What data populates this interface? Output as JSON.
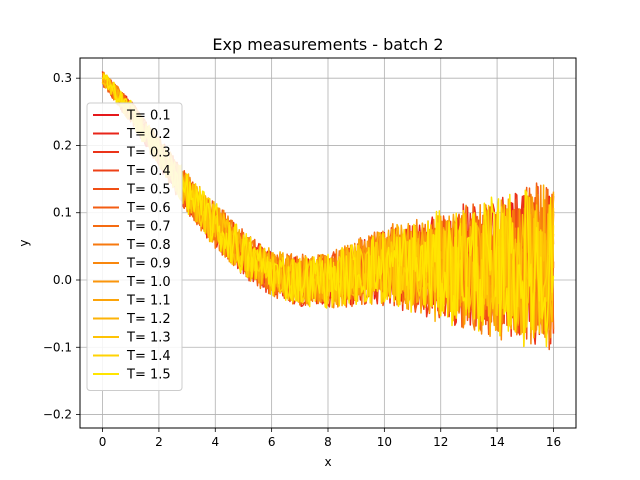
{
  "chart_data": {
    "type": "line",
    "title": "Exp measurements - batch 2",
    "xlabel": "x",
    "ylabel": "y",
    "xlim": [
      -0.8,
      16.8
    ],
    "ylim": [
      -0.22,
      0.33
    ],
    "xticks": [
      0,
      2,
      4,
      6,
      8,
      10,
      12,
      14,
      16
    ],
    "yticks": [
      -0.2,
      -0.1,
      0.0,
      0.1,
      0.2,
      0.3
    ],
    "xtick_labels": [
      "0",
      "2",
      "4",
      "6",
      "8",
      "10",
      "12",
      "14",
      "16"
    ],
    "ytick_labels": [
      "−0.2",
      "−0.1",
      "0.0",
      "0.1",
      "0.2",
      "0.3"
    ],
    "grid": true,
    "legend_position": "upper-left",
    "x_range": [
      0,
      16
    ],
    "trend": {
      "x": [
        0,
        1,
        2,
        3,
        4,
        5,
        6,
        7,
        8,
        9,
        10,
        11,
        12,
        13,
        14,
        15,
        16
      ],
      "y": [
        0.3,
        0.25,
        0.19,
        0.13,
        0.08,
        0.04,
        0.01,
        0.0,
        0.0,
        0.01,
        0.02,
        0.02,
        0.02,
        0.02,
        0.02,
        0.02,
        0.02
      ]
    },
    "noise_amplitude": {
      "x": [
        0,
        2,
        4,
        6,
        8,
        10,
        12,
        14,
        15,
        16
      ],
      "y": [
        0.01,
        0.02,
        0.03,
        0.03,
        0.035,
        0.05,
        0.07,
        0.09,
        0.1,
        0.11
      ]
    },
    "series": [
      {
        "name": "T= 0.1",
        "color": "#e5181b"
      },
      {
        "name": "T= 0.2",
        "color": "#e8251a"
      },
      {
        "name": "T= 0.3",
        "color": "#eb3319"
      },
      {
        "name": "T= 0.4",
        "color": "#ee4117"
      },
      {
        "name": "T= 0.5",
        "color": "#f04f15"
      },
      {
        "name": "T= 0.6",
        "color": "#f35d13"
      },
      {
        "name": "T= 0.7",
        "color": "#f56b11"
      },
      {
        "name": "T= 0.8",
        "color": "#f7790f"
      },
      {
        "name": "T= 0.9",
        "color": "#f9870d"
      },
      {
        "name": "T= 1.0",
        "color": "#fb950b"
      },
      {
        "name": "T= 1.1",
        "color": "#fca409"
      },
      {
        "name": "T= 1.2",
        "color": "#fdb307"
      },
      {
        "name": "T= 1.3",
        "color": "#fec305"
      },
      {
        "name": "T= 1.4",
        "color": "#ffd303"
      },
      {
        "name": "T= 1.5",
        "color": "#ffe500"
      }
    ]
  }
}
